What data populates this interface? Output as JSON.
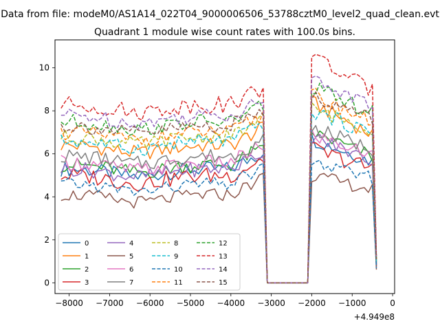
{
  "chart_data": {
    "type": "line",
    "suptitle": "Data from file: modeM0/AS1A14_022T04_9000006506_53788cztM0_level2_quad_clean.evt",
    "title": "Quadrant 1 module wise count rates with 100.0s bins.",
    "xlabel": "",
    "ylabel": "",
    "x_offset_label": "+4.949e8",
    "xlim": [
      -8350,
      50
    ],
    "ylim": [
      -0.5,
      11.3
    ],
    "x_ticks": [
      -8000,
      -7000,
      -6000,
      -5000,
      -4000,
      -3000,
      -2000,
      -1000,
      0
    ],
    "x_tick_labels": [
      "−8000",
      "−7000",
      "−6000",
      "−5000",
      "−4000",
      "−3000",
      "−2000",
      "−1000",
      "0"
    ],
    "y_ticks": [
      0,
      2,
      4,
      6,
      8,
      10
    ],
    "y_tick_labels": [
      "0",
      "2",
      "4",
      "6",
      "8",
      "10"
    ],
    "grid": false,
    "legend_placement": "lower-left",
    "legend_columns": 4,
    "x_start": -8200,
    "x_step": 100,
    "series": [
      {
        "name": "0",
        "color": "#1f77b4",
        "dash": "solid",
        "base": 5.3,
        "peak": 6.7,
        "amp": 0.35
      },
      {
        "name": "1",
        "color": "#ff7f0e",
        "dash": "solid",
        "base": 6.4,
        "peak": 8.4,
        "amp": 0.35
      },
      {
        "name": "2",
        "color": "#2ca02c",
        "dash": "solid",
        "base": 5.5,
        "peak": 7.0,
        "amp": 0.35
      },
      {
        "name": "3",
        "color": "#d62728",
        "dash": "solid",
        "base": 5.0,
        "peak": 6.2,
        "amp": 0.4
      },
      {
        "name": "4",
        "color": "#9467bd",
        "dash": "solid",
        "base": 5.3,
        "peak": 6.8,
        "amp": 0.35
      },
      {
        "name": "5",
        "color": "#8c564b",
        "dash": "solid",
        "base": 4.1,
        "peak": 5.0,
        "amp": 0.3
      },
      {
        "name": "6",
        "color": "#e377c2",
        "dash": "solid",
        "base": 5.6,
        "peak": 6.9,
        "amp": 0.35
      },
      {
        "name": "7",
        "color": "#7f7f7f",
        "dash": "solid",
        "base": 5.9,
        "peak": 7.2,
        "amp": 0.35
      },
      {
        "name": "8",
        "color": "#bcbd22",
        "dash": "dashed",
        "base": 6.8,
        "peak": 8.1,
        "amp": 0.35
      },
      {
        "name": "9",
        "color": "#17becf",
        "dash": "dashed",
        "base": 6.6,
        "peak": 8.0,
        "amp": 0.35
      },
      {
        "name": "10",
        "color": "#1f77b4",
        "dash": "dashed",
        "base": 4.6,
        "peak": 5.6,
        "amp": 0.3
      },
      {
        "name": "11",
        "color": "#ff7f0e",
        "dash": "dashed",
        "base": 7.0,
        "peak": 8.8,
        "amp": 0.35
      },
      {
        "name": "12",
        "color": "#2ca02c",
        "dash": "dashed",
        "base": 7.5,
        "peak": 9.1,
        "amp": 0.35
      },
      {
        "name": "13",
        "color": "#d62728",
        "dash": "dashed",
        "base": 8.3,
        "peak": 10.6,
        "amp": 0.4
      },
      {
        "name": "14",
        "color": "#9467bd",
        "dash": "dashed",
        "base": 7.8,
        "peak": 9.5,
        "amp": 0.35
      },
      {
        "name": "15",
        "color": "#8c564b",
        "dash": "dashed",
        "base": 7.3,
        "peak": 8.7,
        "amp": 0.35
      }
    ]
  }
}
